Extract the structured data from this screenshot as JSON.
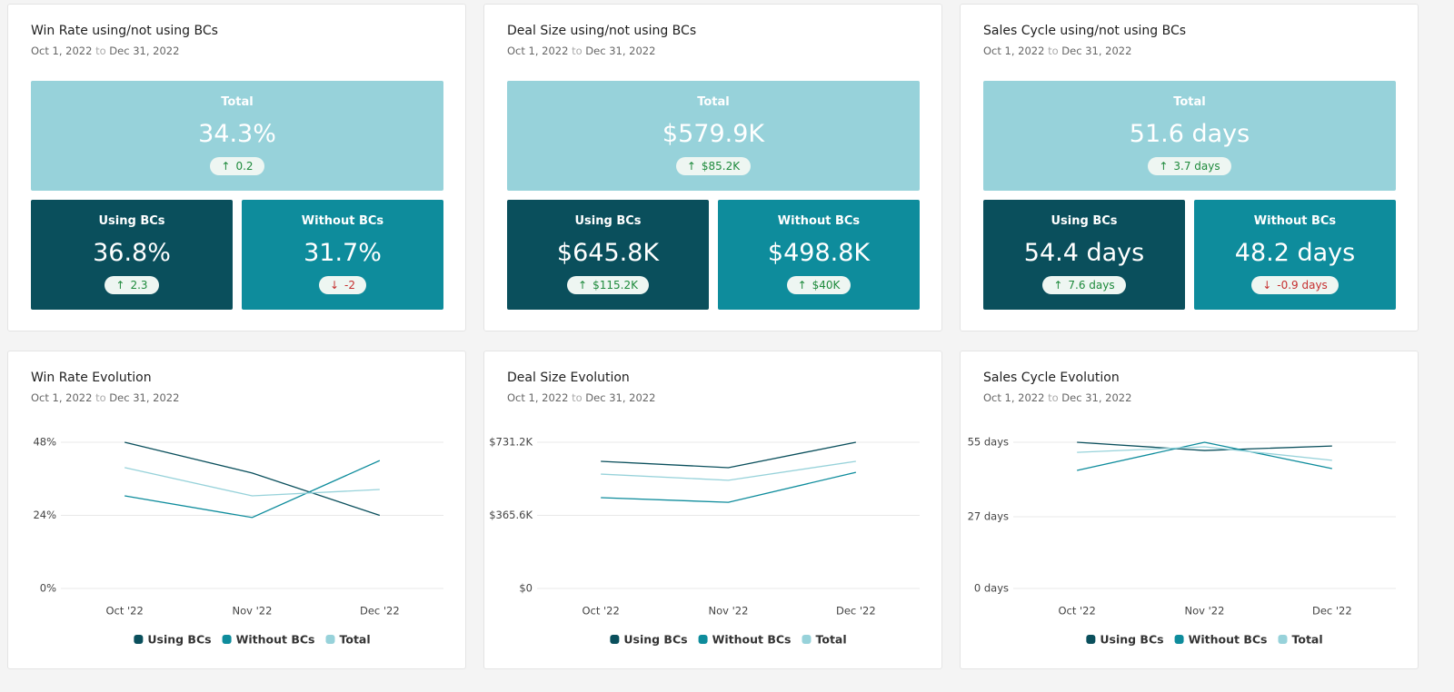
{
  "kpi_cards": [
    {
      "title": "Win Rate using/not using BCs",
      "date_from": "Oct 1, 2022",
      "date_sep": "to",
      "date_to": "Dec 31, 2022",
      "total": {
        "label": "Total",
        "value": "34.3%",
        "delta": "0.2",
        "trend": "up"
      },
      "using": {
        "label": "Using BCs",
        "value": "36.8%",
        "delta": "2.3",
        "trend": "up"
      },
      "without": {
        "label": "Without BCs",
        "value": "31.7%",
        "delta": "-2",
        "trend": "down"
      }
    },
    {
      "title": "Deal Size using/not using BCs",
      "date_from": "Oct 1, 2022",
      "date_sep": "to",
      "date_to": "Dec 31, 2022",
      "total": {
        "label": "Total",
        "value": "$579.9K",
        "delta": "$85.2K",
        "trend": "up"
      },
      "using": {
        "label": "Using BCs",
        "value": "$645.8K",
        "delta": "$115.2K",
        "trend": "up"
      },
      "without": {
        "label": "Without BCs",
        "value": "$498.8K",
        "delta": "$40K",
        "trend": "up"
      }
    },
    {
      "title": "Sales Cycle using/not using BCs",
      "date_from": "Oct 1, 2022",
      "date_sep": "to",
      "date_to": "Dec 31, 2022",
      "total": {
        "label": "Total",
        "value": "51.6 days",
        "delta": "3.7 days",
        "trend": "up"
      },
      "using": {
        "label": "Using BCs",
        "value": "54.4 days",
        "delta": "7.6 days",
        "trend": "up"
      },
      "without": {
        "label": "Without BCs",
        "value": "48.2 days",
        "delta": "-0.9 days",
        "trend": "down"
      }
    }
  ],
  "chart_data": [
    {
      "type": "line",
      "title": "Win Rate Evolution",
      "date_from": "Oct 1, 2022",
      "date_sep": "to",
      "date_to": "Dec 31, 2022",
      "categories": [
        "Oct '22",
        "Nov '22",
        "Dec '22"
      ],
      "series": [
        {
          "name": "Using BCs",
          "color": "#0a4f5c",
          "values": [
            48,
            37.9,
            24
          ]
        },
        {
          "name": "Without BCs",
          "color": "#0e8c9c",
          "values": [
            30.4,
            23.3,
            42
          ]
        },
        {
          "name": "Total",
          "color": "#97d2da",
          "values": [
            39.7,
            30.4,
            32.5
          ]
        }
      ],
      "ylim": [
        0,
        48
      ],
      "yticks": [
        {
          "value": 0,
          "label": "0%"
        },
        {
          "value": 24,
          "label": "24%"
        },
        {
          "value": 48,
          "label": "48%"
        }
      ],
      "grid": true
    },
    {
      "type": "line",
      "title": "Deal Size Evolution",
      "date_from": "Oct 1, 2022",
      "date_sep": "to",
      "date_to": "Dec 31, 2022",
      "categories": [
        "Oct '22",
        "Nov '22",
        "Dec '22"
      ],
      "series": [
        {
          "name": "Using BCs",
          "color": "#0a4f5c",
          "values": [
            636000,
            604000,
            731200
          ]
        },
        {
          "name": "Without BCs",
          "color": "#0e8c9c",
          "values": [
            454000,
            431000,
            581000
          ]
        },
        {
          "name": "Total",
          "color": "#97d2da",
          "values": [
            572000,
            541000,
            636000
          ]
        }
      ],
      "ylim": [
        0,
        731200
      ],
      "yticks": [
        {
          "value": 0,
          "label": "$0"
        },
        {
          "value": 365600,
          "label": "$365.6K"
        },
        {
          "value": 731200,
          "label": "$731.2K"
        }
      ],
      "grid": true
    },
    {
      "type": "line",
      "title": "Sales Cycle Evolution",
      "date_from": "Oct 1, 2022",
      "date_sep": "to",
      "date_to": "Dec 31, 2022",
      "categories": [
        "Oct '22",
        "Nov '22",
        "Dec '22"
      ],
      "series": [
        {
          "name": "Using BCs",
          "color": "#0a4f5c",
          "values": [
            55,
            51.9,
            53.6
          ]
        },
        {
          "name": "Without BCs",
          "color": "#0e8c9c",
          "values": [
            44.4,
            55,
            45.1
          ]
        },
        {
          "name": "Total",
          "color": "#97d2da",
          "values": [
            51.2,
            53.3,
            48.2
          ]
        }
      ],
      "ylim": [
        0,
        55
      ],
      "yticks": [
        {
          "value": 0,
          "label": "0 days"
        },
        {
          "value": 27,
          "label": "27 days"
        },
        {
          "value": 55,
          "label": "55 days"
        }
      ],
      "grid": true
    }
  ]
}
